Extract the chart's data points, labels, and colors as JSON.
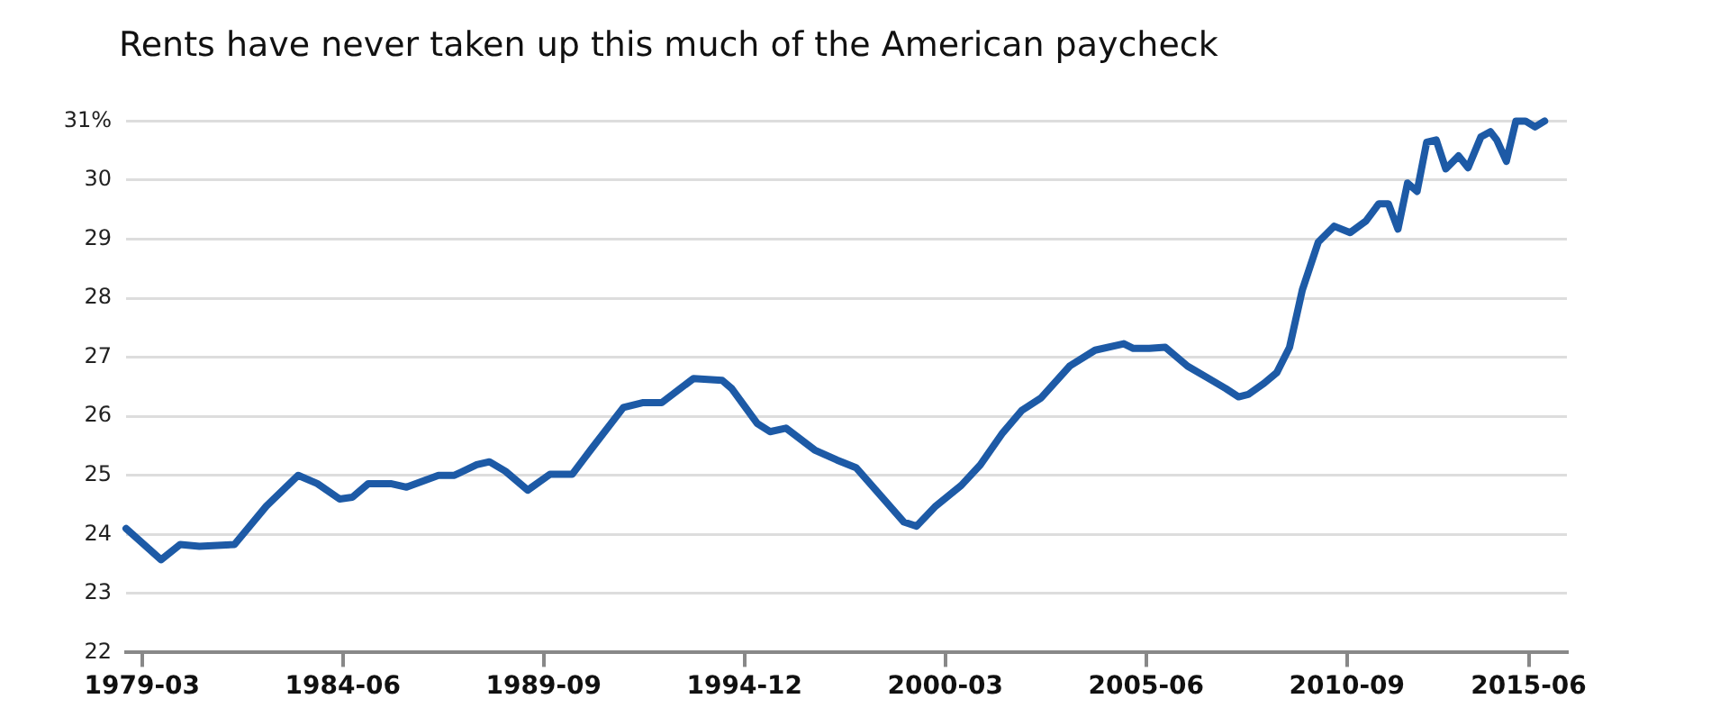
{
  "chart_data": {
    "type": "line",
    "title": "Rents have never taken up this much of the American paycheck",
    "x": [
      "1978-10",
      "1979-09",
      "1980-03",
      "1980-09",
      "1981-08",
      "1982-06",
      "1983-04",
      "1983-10",
      "1984-05",
      "1984-09",
      "1985-02",
      "1985-09",
      "1986-02",
      "1986-12",
      "1987-05",
      "1987-12",
      "1988-04",
      "1988-09",
      "1989-04",
      "1989-11",
      "1990-06",
      "1990-12",
      "1991-10",
      "1992-04",
      "1992-10",
      "1993-08",
      "1994-05",
      "1994-08",
      "1995-04",
      "1995-08",
      "1996-01",
      "1996-10",
      "1997-05",
      "1997-11",
      "1998-07",
      "1999-02",
      "1999-06",
      "1999-12",
      "2000-08",
      "2001-02",
      "2001-09",
      "2002-03",
      "2002-09",
      "2003-06",
      "2004-02",
      "2004-11",
      "2005-02",
      "2005-07",
      "2005-12",
      "2006-07",
      "2007-01",
      "2007-07",
      "2007-11",
      "2008-02",
      "2008-07",
      "2008-11",
      "2009-03",
      "2009-07",
      "2009-12",
      "2010-05",
      "2010-10",
      "2011-03",
      "2011-07",
      "2011-10",
      "2012-01",
      "2012-04",
      "2012-07",
      "2012-10",
      "2013-01",
      "2013-04",
      "2013-08",
      "2013-11",
      "2014-03",
      "2014-06",
      "2014-08",
      "2014-11",
      "2015-02",
      "2015-05",
      "2015-08",
      "2015-11"
    ],
    "series": [
      {
        "color": "#1d5aa6",
        "values": [
          24.1,
          23.57,
          23.83,
          23.8,
          23.83,
          24.48,
          25.0,
          24.86,
          24.6,
          24.63,
          24.86,
          24.86,
          24.8,
          25.0,
          25.0,
          25.18,
          25.23,
          25.07,
          24.75,
          25.02,
          25.02,
          25.45,
          26.15,
          26.23,
          26.23,
          26.64,
          26.61,
          26.47,
          25.88,
          25.74,
          25.8,
          25.43,
          25.26,
          25.13,
          24.64,
          24.21,
          24.14,
          24.48,
          24.83,
          25.18,
          25.72,
          26.1,
          26.31,
          26.85,
          27.12,
          27.23,
          27.15,
          27.15,
          27.17,
          26.85,
          26.66,
          26.47,
          26.33,
          26.37,
          26.56,
          26.74,
          27.17,
          28.14,
          28.95,
          29.22,
          29.11,
          29.31,
          29.6,
          29.6,
          29.17,
          29.95,
          29.81,
          30.64,
          30.68,
          30.19,
          30.41,
          30.21,
          30.73,
          30.82,
          30.68,
          30.32,
          31.0,
          31.0,
          30.9,
          31.0
        ]
      }
    ],
    "xlim": [
      "1978-10",
      "2016-06"
    ],
    "xticks": [
      "1979-03",
      "1984-06",
      "1989-09",
      "1994-12",
      "2000-03",
      "2005-06",
      "2010-09",
      "2015-06"
    ],
    "ylim": [
      22,
      31
    ],
    "yticks": [
      22,
      23,
      24,
      25,
      26,
      27,
      28,
      29,
      30,
      {
        "value": 31,
        "label": "31%"
      }
    ],
    "grid": "y",
    "legend": false,
    "marker": "none",
    "line_style": "solid"
  }
}
